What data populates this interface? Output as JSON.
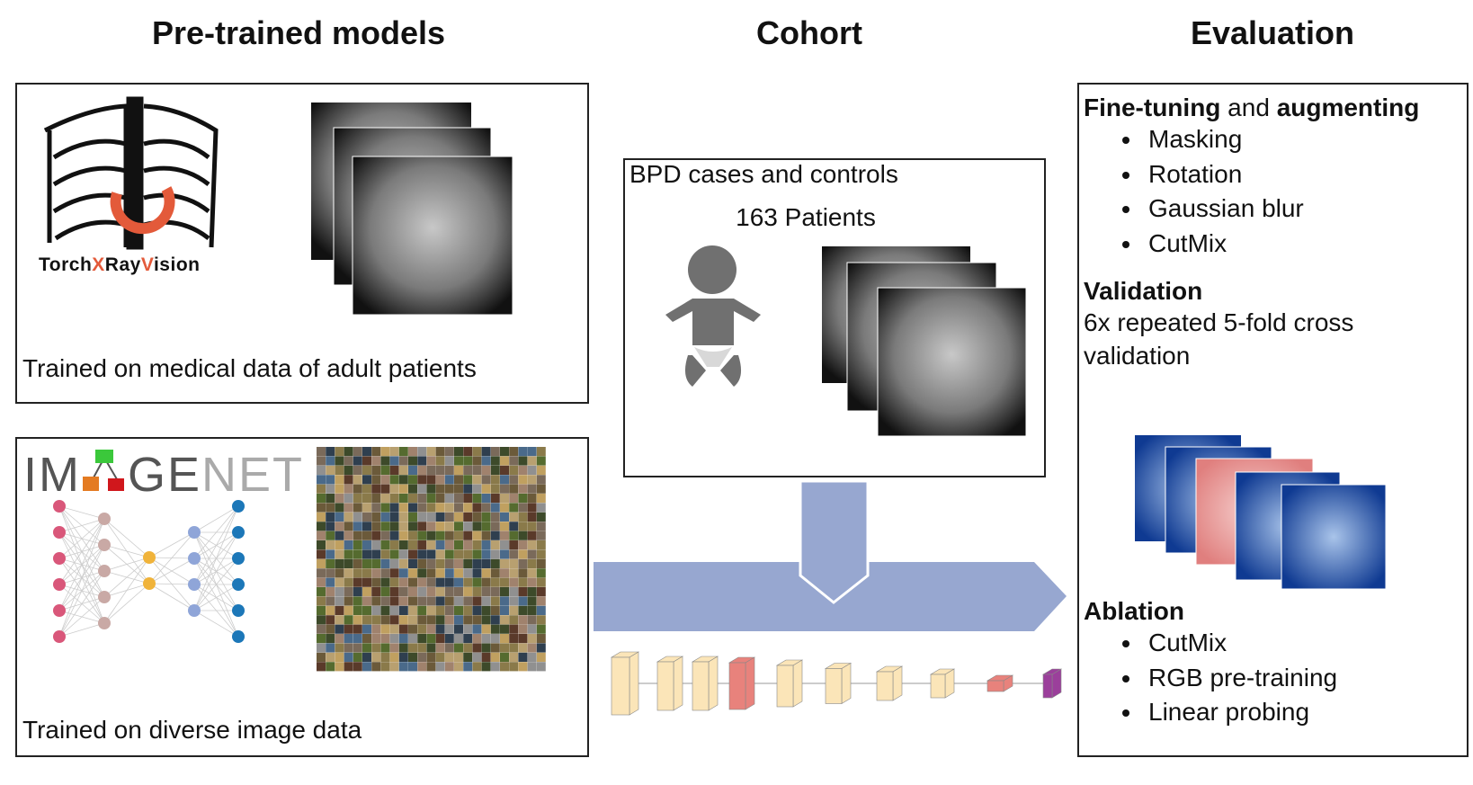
{
  "headers": [
    "Pre-trained models",
    "Cohort",
    "Evaluation"
  ],
  "pretrained": {
    "torchxrayvision": {
      "logo_parts": [
        "Torch",
        "X",
        "Ray",
        "V",
        "ision"
      ],
      "caption": "Trained on medical data of adult patients"
    },
    "imagenet": {
      "logo_parts": [
        "IM",
        "GE",
        "NET"
      ],
      "caption": "Trained on diverse image data"
    }
  },
  "cohort": {
    "title": "BPD cases and controls",
    "count": "163 Patients"
  },
  "evaluation": {
    "finetuning": {
      "heading_parts": [
        "Fine-tuning",
        " and ",
        "augmenting"
      ],
      "items": [
        "Masking",
        "Rotation",
        "Gaussian blur",
        "CutMix"
      ]
    },
    "validation": {
      "heading": "Validation",
      "text": "6x repeated 5-fold cross validation"
    },
    "ablation": {
      "heading": "Ablation",
      "items": [
        "CutMix",
        "RGB pre-training",
        "Linear probing"
      ]
    }
  }
}
